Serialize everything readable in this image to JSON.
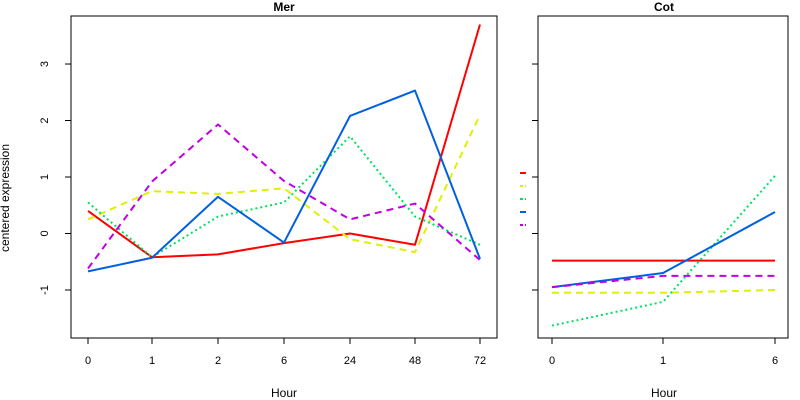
{
  "chart_data": [
    {
      "type": "line",
      "title": "Mer",
      "xlabel": "Hour",
      "ylabel": "centered expression",
      "categories": [
        "0",
        "1",
        "2",
        "6",
        "24",
        "48",
        "72"
      ],
      "ylim": [
        -1.85,
        3.85
      ],
      "yticks": [
        -1,
        0,
        1,
        2,
        3
      ],
      "grid": false,
      "series": [
        {
          "color": "#ff0000",
          "dash": "solid",
          "values": [
            0.4,
            -0.42,
            -0.37,
            -0.17,
            0.0,
            -0.2,
            3.7
          ]
        },
        {
          "color": "#e0f000",
          "dash": "dashed",
          "values": [
            0.25,
            0.75,
            0.7,
            0.8,
            -0.1,
            -0.33,
            2.1
          ]
        },
        {
          "color": "#00e060",
          "dash": "dotted",
          "values": [
            0.55,
            -0.42,
            0.3,
            0.55,
            1.72,
            0.3,
            -0.2
          ]
        },
        {
          "color": "#0060e0",
          "dash": "solid",
          "values": [
            -0.67,
            -0.43,
            0.65,
            -0.16,
            2.08,
            2.53,
            -0.45
          ]
        },
        {
          "color": "#c000e0",
          "dash": "dashed",
          "values": [
            -0.62,
            0.92,
            1.93,
            0.93,
            0.25,
            0.53,
            -0.47
          ]
        }
      ]
    },
    {
      "type": "line",
      "title": "Cot",
      "xlabel": "Hour",
      "ylabel": "",
      "categories": [
        "0",
        "1",
        "6"
      ],
      "ylim": [
        -1.85,
        3.85
      ],
      "yticks": [
        -1,
        0,
        1,
        2,
        3
      ],
      "grid": false,
      "series": [
        {
          "color": "#ff0000",
          "dash": "solid",
          "values": [
            -0.48,
            -0.48,
            -0.48
          ]
        },
        {
          "color": "#e0f000",
          "dash": "dashed",
          "values": [
            -1.05,
            -1.05,
            -1.0
          ]
        },
        {
          "color": "#00e060",
          "dash": "dotted",
          "values": [
            -1.63,
            -1.21,
            1.02
          ]
        },
        {
          "color": "#0060e0",
          "dash": "solid",
          "values": [
            -0.95,
            -0.7,
            0.38
          ]
        },
        {
          "color": "#c000e0",
          "dash": "dashed",
          "values": [
            -0.95,
            -0.75,
            -0.75
          ]
        }
      ]
    }
  ],
  "legend": {
    "placement": "between-panels",
    "colors": [
      "#ff0000",
      "#e0f000",
      "#00e060",
      "#0060e0",
      "#c000e0"
    ],
    "dashes": [
      "solid",
      "dashed",
      "dotted",
      "solid",
      "dashed"
    ]
  }
}
